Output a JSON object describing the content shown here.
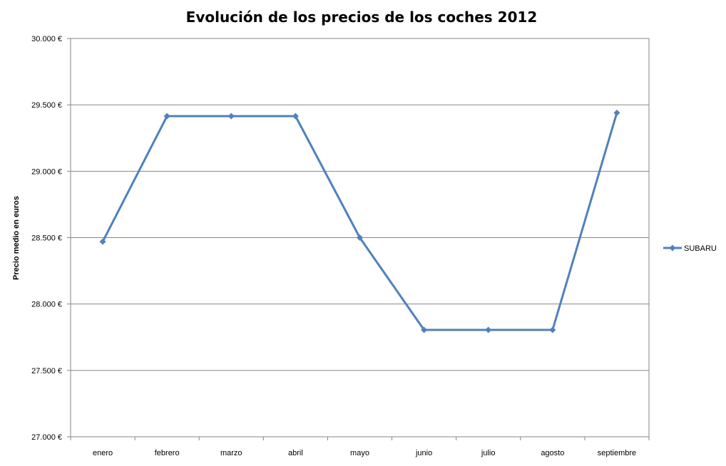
{
  "chart_data": {
    "type": "line",
    "title": "Evolución de los precios de los coches 2012",
    "xlabel": "",
    "ylabel": "Precio medio en euros",
    "categories": [
      "enero",
      "febrero",
      "marzo",
      "abril",
      "mayo",
      "junio",
      "julio",
      "agosto",
      "septiembre"
    ],
    "series": [
      {
        "name": "SUBARU",
        "color": "#4f81bd",
        "marker": "diamond",
        "values": [
          28470,
          29415,
          29415,
          29415,
          28500,
          27805,
          27805,
          27805,
          29440
        ]
      }
    ],
    "ylim": [
      27000,
      30000
    ],
    "yticks": [
      27000,
      27500,
      28000,
      28500,
      29000,
      29500,
      30000
    ],
    "ytick_labels": [
      "27.000 €",
      "27.500 €",
      "28.000 €",
      "28.500 €",
      "29.000 €",
      "29.500 €",
      "30.000 €"
    ],
    "grid": true,
    "legend_position": "right"
  }
}
